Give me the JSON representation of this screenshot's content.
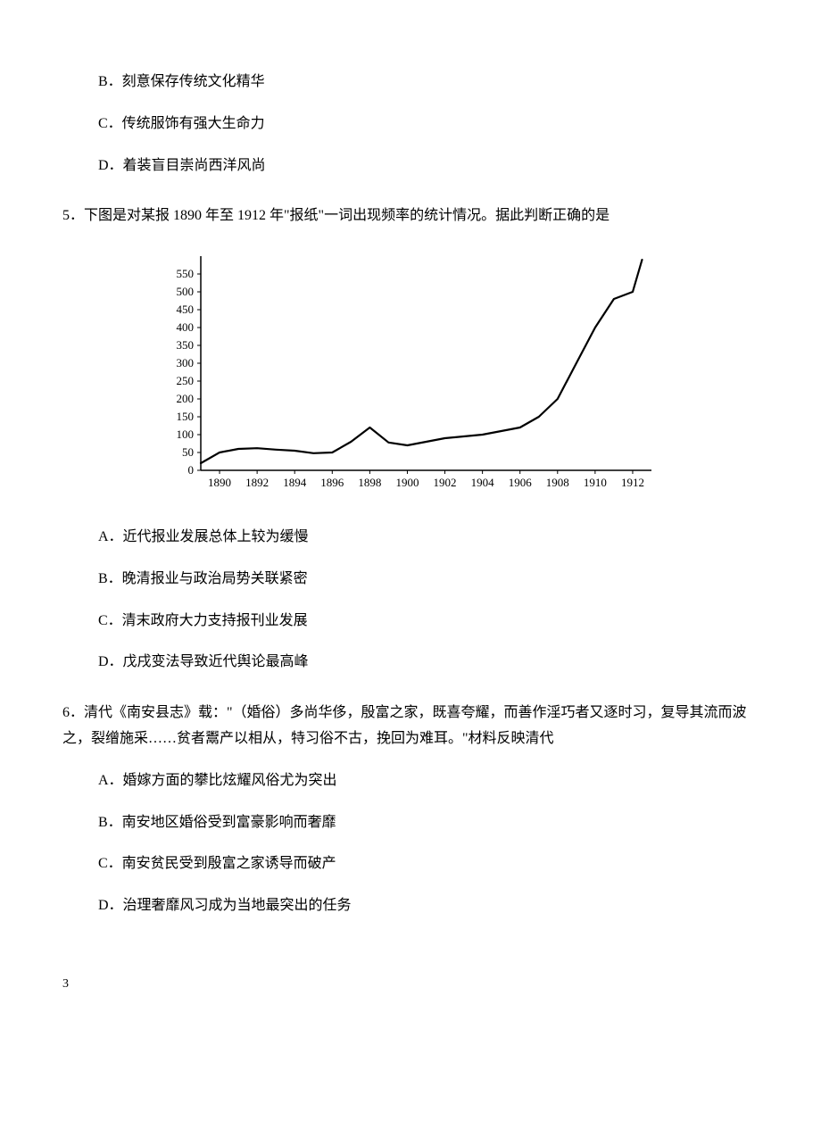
{
  "q4_options": {
    "B": "B．刻意保存传统文化精华",
    "C": "C．传统服饰有强大生命力",
    "D": "D．着装盲目崇尚西洋风尚"
  },
  "q5": {
    "stem": "5．下图是对某报 1890 年至 1912 年\"报纸\"一词出现频率的统计情况。据此判断正确的是",
    "options": {
      "A": "A．近代报业发展总体上较为缓慢",
      "B": "B．晚清报业与政治局势关联紧密",
      "C": "C．清末政府大力支持报刊业发展",
      "D": "D．戊戌变法导致近代舆论最高峰"
    }
  },
  "q6": {
    "stem": "6．清代《南安县志》载：\"（婚俗）多尚华侈，殷富之家，既喜夸耀，而善作淫巧者又逐时习，复导其流而波之，裂缯施采……贫者鬻产以相从，特习俗不古，挽回为难耳。\"材料反映清代",
    "options": {
      "A": "A．婚嫁方面的攀比炫耀风俗尤为突出",
      "B": "B．南安地区婚俗受到富豪影响而奢靡",
      "C": "C．南安贫民受到殷富之家诱导而破产",
      "D": "D．治理奢靡风习成为当地最突出的任务"
    }
  },
  "chart": {
    "type": "line",
    "xlim": [
      1889,
      1913
    ],
    "ylim": [
      0,
      600
    ],
    "ytick_step": 50,
    "yticks": [
      0,
      50,
      100,
      150,
      200,
      250,
      300,
      350,
      400,
      450,
      500,
      550
    ],
    "xticks": [
      1890,
      1892,
      1894,
      1896,
      1898,
      1900,
      1902,
      1904,
      1906,
      1908,
      1910,
      1912
    ],
    "line_color": "#000000",
    "line_width": 2.2,
    "tick_fontsize": 13,
    "background_color": "#ffffff",
    "axis_color": "#000000",
    "points": [
      [
        1889,
        20
      ],
      [
        1890,
        50
      ],
      [
        1891,
        60
      ],
      [
        1892,
        62
      ],
      [
        1893,
        58
      ],
      [
        1894,
        55
      ],
      [
        1895,
        48
      ],
      [
        1896,
        50
      ],
      [
        1897,
        80
      ],
      [
        1898,
        120
      ],
      [
        1899,
        78
      ],
      [
        1900,
        70
      ],
      [
        1901,
        80
      ],
      [
        1902,
        90
      ],
      [
        1903,
        95
      ],
      [
        1904,
        100
      ],
      [
        1905,
        110
      ],
      [
        1906,
        120
      ],
      [
        1907,
        150
      ],
      [
        1908,
        200
      ],
      [
        1909,
        300
      ],
      [
        1910,
        400
      ],
      [
        1911,
        480
      ],
      [
        1912,
        500
      ],
      [
        1912.5,
        590
      ]
    ]
  },
  "page_number": "3"
}
